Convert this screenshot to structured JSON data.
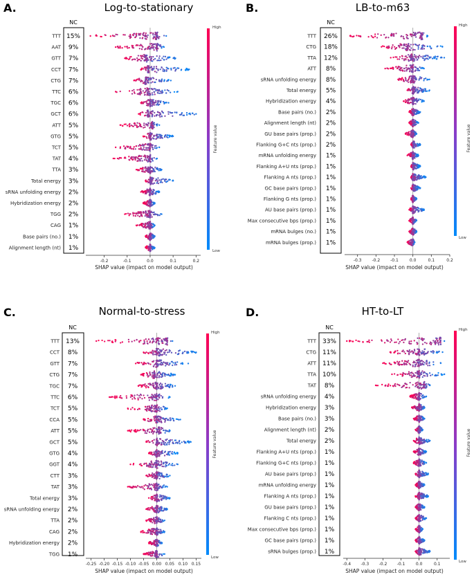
{
  "colors": {
    "high": "#ff0052",
    "low": "#008bfb",
    "axis": "#333333",
    "zero_line": "#999999"
  },
  "chart_data": [
    {
      "type": "beeswarm",
      "panel_letter": "A.",
      "title": "Log-to-stationary",
      "nc_header": "NC",
      "xlabel": "SHAP value (impact on model output)",
      "xlim": [
        -0.28,
        0.22
      ],
      "ticks": [
        -0.2,
        -0.1,
        0.0,
        0.1,
        0.2
      ],
      "tick_labels": [
        "-0.2",
        "-0.1",
        "0.0",
        "0.1",
        "0.2"
      ],
      "colorbar": {
        "high": "High",
        "low": "Low",
        "label": "Feature value"
      },
      "features": [
        {
          "name": "TTT",
          "nc": "15%",
          "min": -0.26,
          "max": 0.07,
          "center": 0.03
        },
        {
          "name": "AAT",
          "nc": "9%",
          "min": -0.15,
          "max": 0.06,
          "center": 0.03
        },
        {
          "name": "GTT",
          "nc": "7%",
          "min": -0.11,
          "max": 0.11,
          "center": -0.02
        },
        {
          "name": "CCT",
          "nc": "7%",
          "min": -0.04,
          "max": 0.17,
          "center": -0.01
        },
        {
          "name": "CTG",
          "nc": "7%",
          "min": -0.07,
          "max": 0.09,
          "center": -0.02
        },
        {
          "name": "TTC",
          "nc": "6%",
          "min": -0.15,
          "max": 0.12,
          "center": -0.01
        },
        {
          "name": "TGC",
          "nc": "6%",
          "min": -0.04,
          "max": 0.08,
          "center": 0.0
        },
        {
          "name": "GCT",
          "nc": "6%",
          "min": -0.05,
          "max": 0.2,
          "center": -0.01
        },
        {
          "name": "ATT",
          "nc": "5%",
          "min": -0.13,
          "max": 0.04,
          "center": 0.01
        },
        {
          "name": "GTG",
          "nc": "5%",
          "min": -0.03,
          "max": 0.1,
          "center": 0.0
        },
        {
          "name": "TCT",
          "nc": "5%",
          "min": -0.15,
          "max": 0.04,
          "center": 0.0
        },
        {
          "name": "TAT",
          "nc": "4%",
          "min": -0.16,
          "max": 0.03,
          "center": 0.0
        },
        {
          "name": "TTA",
          "nc": "3%",
          "min": -0.06,
          "max": 0.05,
          "center": 0.0
        },
        {
          "name": "Total energy",
          "nc": "3%",
          "min": -0.02,
          "max": 0.1,
          "center": 0.0
        },
        {
          "name": "sRNA unfolding energy",
          "nc": "2%",
          "min": -0.04,
          "max": 0.04,
          "center": 0.0
        },
        {
          "name": "Hybridization energy",
          "nc": "2%",
          "min": -0.03,
          "max": 0.02,
          "center": 0.0
        },
        {
          "name": "TGG",
          "nc": "2%",
          "min": -0.11,
          "max": 0.05,
          "center": 0.0
        },
        {
          "name": "CAG",
          "nc": "1%",
          "min": -0.06,
          "max": 0.02,
          "center": 0.0
        },
        {
          "name": "Base pairs (no.)",
          "nc": "1%",
          "min": -0.02,
          "max": 0.02,
          "center": 0.0
        },
        {
          "name": "Alignment length (nt)",
          "nc": "1%",
          "min": -0.02,
          "max": 0.02,
          "center": 0.0
        }
      ]
    },
    {
      "type": "beeswarm",
      "panel_letter": "B.",
      "title": "LB-to-m63",
      "nc_header": "NC",
      "xlabel": "SHAP value (impact on model output)",
      "xlim": [
        -0.37,
        0.2
      ],
      "ticks": [
        -0.3,
        -0.2,
        -0.1,
        0.0,
        0.1,
        0.2
      ],
      "tick_labels": [
        "-0.3",
        "-0.2",
        "-0.1",
        "0.0",
        "0.1",
        "0.2"
      ],
      "colorbar": {
        "high": "High",
        "low": "Low",
        "label": "Feature value"
      },
      "features": [
        {
          "name": "TTT",
          "nc": "26%",
          "min": -0.34,
          "max": 0.08,
          "center": 0.05
        },
        {
          "name": "CTG",
          "nc": "18%",
          "min": -0.17,
          "max": 0.16,
          "center": -0.03
        },
        {
          "name": "TTA",
          "nc": "12%",
          "min": -0.12,
          "max": 0.17,
          "center": -0.01
        },
        {
          "name": "ATT",
          "nc": "8%",
          "min": -0.15,
          "max": 0.06,
          "center": 0.0
        },
        {
          "name": "sRNA unfolding energy",
          "nc": "8%",
          "min": -0.08,
          "max": 0.09,
          "center": 0.0
        },
        {
          "name": "Total energy",
          "nc": "5%",
          "min": -0.03,
          "max": 0.09,
          "center": 0.0
        },
        {
          "name": "Hybridization energy",
          "nc": "4%",
          "min": -0.05,
          "max": 0.06,
          "center": 0.0
        },
        {
          "name": "Base pairs (no.)",
          "nc": "2%",
          "min": -0.02,
          "max": 0.04,
          "center": 0.0
        },
        {
          "name": "Alignment length (nt)",
          "nc": "2%",
          "min": -0.02,
          "max": 0.03,
          "center": 0.0
        },
        {
          "name": "GU base pairs (prop.)",
          "nc": "2%",
          "min": -0.04,
          "max": 0.02,
          "center": 0.0
        },
        {
          "name": "Flanking G+C nts (prop.)",
          "nc": "2%",
          "min": -0.01,
          "max": 0.04,
          "center": 0.0
        },
        {
          "name": "mRNA unfolding energy",
          "nc": "1%",
          "min": -0.03,
          "max": 0.03,
          "center": 0.0
        },
        {
          "name": "Flanking A+U nts (prop.)",
          "nc": "1%",
          "min": -0.01,
          "max": 0.04,
          "center": 0.0
        },
        {
          "name": "Flanking A nts (prop.)",
          "nc": "1%",
          "min": -0.01,
          "max": 0.07,
          "center": 0.0
        },
        {
          "name": "GC base pairs (prop.)",
          "nc": "1%",
          "min": -0.01,
          "max": 0.04,
          "center": 0.0
        },
        {
          "name": "Flanking G nts (prop.)",
          "nc": "1%",
          "min": -0.01,
          "max": 0.02,
          "center": 0.0
        },
        {
          "name": "AU base pairs (prop.)",
          "nc": "1%",
          "min": -0.02,
          "max": 0.06,
          "center": 0.0
        },
        {
          "name": "Max consecutive bps (prop.)",
          "nc": "1%",
          "min": -0.02,
          "max": 0.02,
          "center": 0.0
        },
        {
          "name": "mRNA bulges (no.)",
          "nc": "1%",
          "min": -0.02,
          "max": 0.02,
          "center": 0.0
        },
        {
          "name": "mRNA bulges (prop.)",
          "nc": "1%",
          "min": -0.03,
          "max": 0.01,
          "center": 0.0
        }
      ]
    },
    {
      "type": "beeswarm",
      "panel_letter": "C.",
      "title": "Normal-to-stress",
      "nc_header": "NC",
      "xlabel": "SHAP value (impact on model output)",
      "xlim": [
        -0.27,
        0.17
      ],
      "ticks": [
        -0.25,
        -0.2,
        -0.15,
        -0.1,
        -0.05,
        0.0,
        0.05,
        0.1,
        0.15
      ],
      "tick_labels": [
        "-0.25",
        "-0.20",
        "-0.15",
        "-0.10",
        "-0.05",
        "0.00",
        "0.05",
        "0.10",
        "0.15"
      ],
      "colorbar": {
        "high": "High",
        "low": "Low",
        "label": "Feature value"
      },
      "features": [
        {
          "name": "TTT",
          "nc": "13%",
          "min": -0.23,
          "max": 0.06,
          "center": 0.04
        },
        {
          "name": "CCT",
          "nc": "8%",
          "min": -0.05,
          "max": 0.15,
          "center": 0.0
        },
        {
          "name": "GTT",
          "nc": "7%",
          "min": -0.08,
          "max": 0.12,
          "center": 0.0
        },
        {
          "name": "CTG",
          "nc": "7%",
          "min": -0.06,
          "max": 0.07,
          "center": -0.01
        },
        {
          "name": "TGC",
          "nc": "7%",
          "min": -0.07,
          "max": 0.07,
          "center": 0.0
        },
        {
          "name": "TTC",
          "nc": "6%",
          "min": -0.18,
          "max": 0.05,
          "center": 0.0
        },
        {
          "name": "TCT",
          "nc": "5%",
          "min": -0.11,
          "max": 0.04,
          "center": 0.0
        },
        {
          "name": "CCA",
          "nc": "5%",
          "min": -0.05,
          "max": 0.09,
          "center": 0.0
        },
        {
          "name": "ATT",
          "nc": "5%",
          "min": -0.11,
          "max": 0.05,
          "center": 0.01
        },
        {
          "name": "GCT",
          "nc": "5%",
          "min": -0.04,
          "max": 0.13,
          "center": 0.0
        },
        {
          "name": "GTG",
          "nc": "4%",
          "min": -0.03,
          "max": 0.08,
          "center": 0.0
        },
        {
          "name": "GGT",
          "nc": "4%",
          "min": -0.1,
          "max": 0.08,
          "center": 0.0
        },
        {
          "name": "CTT",
          "nc": "3%",
          "min": -0.04,
          "max": 0.05,
          "center": 0.0
        },
        {
          "name": "TAT",
          "nc": "3%",
          "min": -0.11,
          "max": 0.04,
          "center": 0.0
        },
        {
          "name": "Total energy",
          "nc": "3%",
          "min": -0.03,
          "max": 0.05,
          "center": 0.0
        },
        {
          "name": "sRNA unfolding energy",
          "nc": "2%",
          "min": -0.04,
          "max": 0.04,
          "center": 0.0
        },
        {
          "name": "TTA",
          "nc": "2%",
          "min": -0.04,
          "max": 0.03,
          "center": 0.0
        },
        {
          "name": "CAG",
          "nc": "2%",
          "min": -0.06,
          "max": 0.03,
          "center": 0.0
        },
        {
          "name": "Hybridization energy",
          "nc": "2%",
          "min": -0.03,
          "max": 0.02,
          "center": 0.0
        },
        {
          "name": "TGG",
          "nc": "1%",
          "min": -0.05,
          "max": 0.03,
          "center": 0.0
        }
      ]
    },
    {
      "type": "beeswarm",
      "panel_letter": "D.",
      "title": "HT-to-LT",
      "nc_header": "NC",
      "xlabel": "SHAP value (impact on model output)",
      "xlim": [
        -0.42,
        0.17
      ],
      "ticks": [
        -0.4,
        -0.3,
        -0.2,
        -0.1,
        0.0,
        0.1
      ],
      "tick_labels": [
        "-0.4",
        "-0.3",
        "-0.2",
        "-0.1",
        "0.0",
        "0.1"
      ],
      "colorbar": {
        "high": "High",
        "low": "Low",
        "label": "Feature value"
      },
      "features": [
        {
          "name": "TTT",
          "nc": "33%",
          "min": -0.4,
          "max": 0.14,
          "center": 0.12
        },
        {
          "name": "CTG",
          "nc": "11%",
          "min": -0.16,
          "max": 0.13,
          "center": 0.0
        },
        {
          "name": "ATT",
          "nc": "11%",
          "min": -0.2,
          "max": 0.12,
          "center": 0.0
        },
        {
          "name": "TTA",
          "nc": "10%",
          "min": -0.15,
          "max": 0.14,
          "center": 0.0
        },
        {
          "name": "TAT",
          "nc": "8%",
          "min": -0.24,
          "max": 0.06,
          "center": 0.03
        },
        {
          "name": "sRNA unfolding energy",
          "nc": "4%",
          "min": -0.05,
          "max": 0.04,
          "center": 0.0
        },
        {
          "name": "Hybridization energy",
          "nc": "3%",
          "min": -0.04,
          "max": 0.03,
          "center": 0.0
        },
        {
          "name": "Base pairs (no.)",
          "nc": "3%",
          "min": -0.03,
          "max": 0.03,
          "center": 0.0
        },
        {
          "name": "Alignment length (nt)",
          "nc": "2%",
          "min": -0.02,
          "max": 0.02,
          "center": 0.0
        },
        {
          "name": "Total energy",
          "nc": "2%",
          "min": -0.03,
          "max": 0.06,
          "center": 0.0
        },
        {
          "name": "Flanking A+U nts (prop.)",
          "nc": "1%",
          "min": -0.03,
          "max": 0.04,
          "center": 0.0
        },
        {
          "name": "Flanking G+C nts (prop.)",
          "nc": "1%",
          "min": -0.03,
          "max": 0.04,
          "center": 0.0
        },
        {
          "name": "AU base pairs (prop.)",
          "nc": "1%",
          "min": -0.02,
          "max": 0.05,
          "center": 0.0
        },
        {
          "name": "mRNA unfolding energy",
          "nc": "1%",
          "min": -0.02,
          "max": 0.03,
          "center": 0.0
        },
        {
          "name": "Flanking A nts (prop.)",
          "nc": "1%",
          "min": -0.02,
          "max": 0.05,
          "center": 0.0
        },
        {
          "name": "GU base pairs (prop.)",
          "nc": "1%",
          "min": -0.02,
          "max": 0.03,
          "center": 0.0
        },
        {
          "name": "Flanking C nts (prop.)",
          "nc": "1%",
          "min": -0.02,
          "max": 0.04,
          "center": 0.0
        },
        {
          "name": "Max consecutive bps (prop.)",
          "nc": "1%",
          "min": -0.02,
          "max": 0.02,
          "center": 0.0
        },
        {
          "name": "GC base pairs (prop.)",
          "nc": "1%",
          "min": -0.02,
          "max": 0.03,
          "center": 0.0
        },
        {
          "name": "sRNA bulges (prop.)",
          "nc": "1%",
          "min": -0.02,
          "max": 0.06,
          "center": 0.0
        }
      ]
    }
  ]
}
